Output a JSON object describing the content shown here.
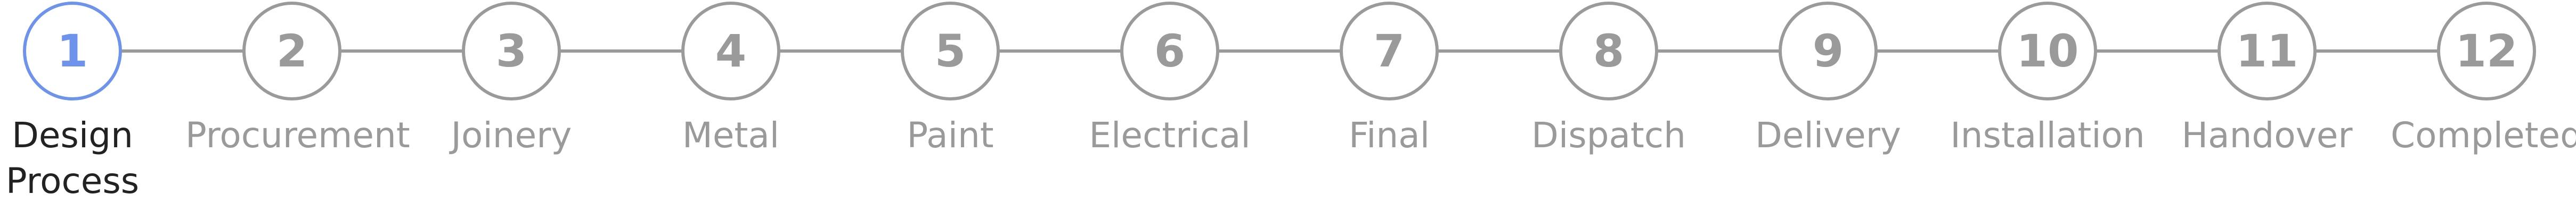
{
  "stepper": {
    "active_index": 0,
    "colors": {
      "active": "#6e93ec",
      "inactive": "#9a9a9a",
      "active_label": "#222222"
    },
    "steps": [
      {
        "number": "1",
        "label": "Design Process"
      },
      {
        "number": "2",
        "label": "Procurement"
      },
      {
        "number": "3",
        "label": "Joinery"
      },
      {
        "number": "4",
        "label": "Metal"
      },
      {
        "number": "5",
        "label": "Paint"
      },
      {
        "number": "6",
        "label": "Electrical"
      },
      {
        "number": "7",
        "label": "Final"
      },
      {
        "number": "8",
        "label": "Dispatch"
      },
      {
        "number": "9",
        "label": "Delivery"
      },
      {
        "number": "10",
        "label": "Installation"
      },
      {
        "number": "11",
        "label": "Handover"
      },
      {
        "number": "12",
        "label": "Completed"
      }
    ]
  }
}
